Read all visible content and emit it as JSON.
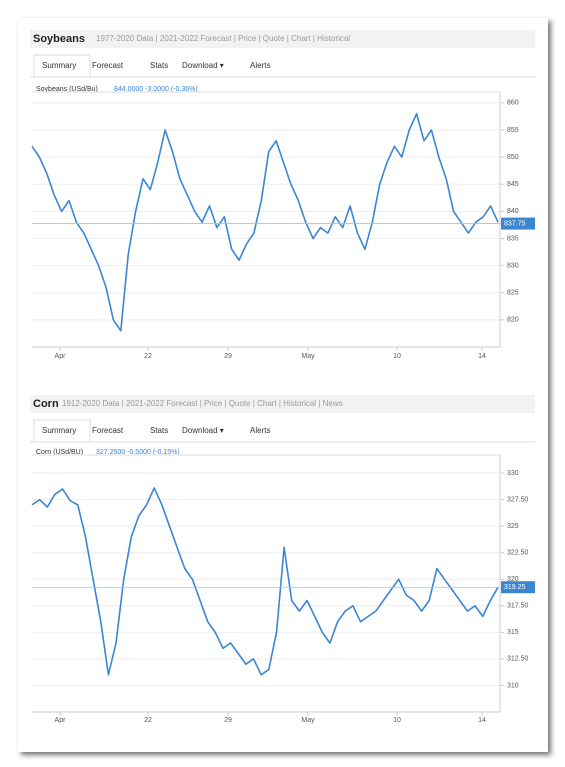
{
  "chart_data": [
    {
      "type": "line",
      "title": "Soybeans",
      "nav": "1977-2020 Data | 2021-2022 Forecast | Price | Quote | Chart | Historical",
      "tabs": [
        "Summary",
        "Forecast",
        "Stats",
        "Download ▾",
        "Alerts"
      ],
      "series_label": "Soybeans (USd/Bu)",
      "quote": "844.0000 -3.0000 (-0.36%)",
      "xtick_labels": [
        "Apr",
        "22",
        "29",
        "May",
        "10",
        "14"
      ],
      "series": [
        {
          "name": "Soybeans",
          "color": "#3b86d1",
          "values": [
            852,
            850,
            847,
            843,
            840,
            842,
            838,
            836,
            833,
            830,
            826,
            820,
            818,
            832,
            840,
            846,
            844,
            849,
            855,
            851,
            846,
            843,
            840,
            838,
            841,
            837,
            839,
            833,
            831,
            834,
            836,
            842,
            851,
            853,
            849,
            845,
            842,
            838,
            835,
            837,
            836,
            839,
            837,
            841,
            836,
            833,
            838,
            845,
            849,
            852,
            850,
            855,
            858,
            853,
            855,
            850,
            846,
            840,
            838,
            836,
            838,
            839,
            841,
            838
          ]
        }
      ],
      "ylim": [
        815,
        862
      ],
      "yticks": [
        860,
        855,
        850,
        845,
        840,
        835,
        830,
        825,
        820
      ],
      "last_value": 837.75
    },
    {
      "type": "line",
      "title": "Corn",
      "nav": "1912-2020 Data | 2021-2022 Forecast | Price | Quote | Chart | Historical | News",
      "tabs": [
        "Summary",
        "Forecast",
        "Stats",
        "Download ▾",
        "Alerts"
      ],
      "series_label": "Corn (USd/BU)",
      "quote": "327.2500 -0.5000 (-0.15%)",
      "xtick_labels": [
        "Apr",
        "22",
        "29",
        "May",
        "10",
        "14"
      ],
      "series": [
        {
          "name": "Corn",
          "color": "#3b86d1",
          "values": [
            327,
            327.5,
            326.8,
            328,
            328.5,
            327.4,
            327,
            324,
            320,
            316,
            311,
            314,
            320,
            324,
            326,
            327,
            328.6,
            327,
            325,
            323,
            321,
            320,
            318,
            316,
            315,
            313.5,
            314,
            313,
            312,
            312.5,
            311,
            311.5,
            315,
            323,
            318,
            317,
            318,
            316.5,
            315,
            314,
            316,
            317,
            317.5,
            316,
            316.5,
            317,
            318,
            319,
            320,
            318.5,
            318,
            317,
            318,
            321,
            320,
            319,
            318,
            317,
            317.5,
            316.5,
            318,
            319.25
          ]
        }
      ],
      "ylim": [
        307.5,
        331.7
      ],
      "yticks": [
        330,
        {
          "value": 327.5,
          "label": "327.50"
        },
        325,
        {
          "value": 322.5,
          "label": "322.50"
        },
        320,
        {
          "value": 317.5,
          "label": "317.50"
        },
        315,
        {
          "value": 312.5,
          "label": "312.50"
        },
        310
      ],
      "last_value": 319.25
    }
  ]
}
